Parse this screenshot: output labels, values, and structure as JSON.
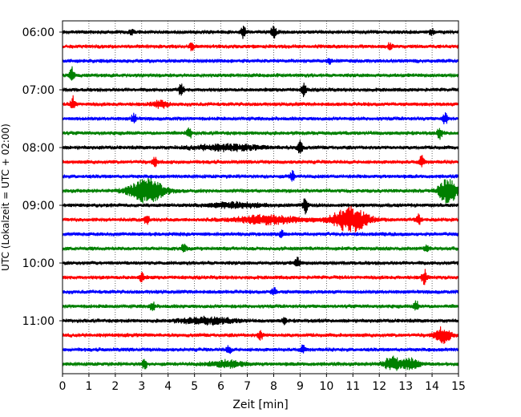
{
  "chart_data": {
    "type": "line",
    "subtype": "helicorder",
    "xlabel": "Zeit  [min]",
    "ylabel": "UTC (Lokalzeit = UTC + 02:00)",
    "xlim": [
      0,
      15
    ],
    "x_ticks": [
      "0",
      "1",
      "2",
      "3",
      "4",
      "5",
      "6",
      "7",
      "8",
      "9",
      "10",
      "11",
      "12",
      "13",
      "14",
      "15"
    ],
    "y_ticks": [
      {
        "label": "06:00",
        "trace_index": 0
      },
      {
        "label": "07:00",
        "trace_index": 4
      },
      {
        "label": "08:00",
        "trace_index": 8
      },
      {
        "label": "09:00",
        "trace_index": 12
      },
      {
        "label": "10:00",
        "trace_index": 16
      },
      {
        "label": "11:00",
        "trace_index": 20
      }
    ],
    "trace_colors": [
      "#000000",
      "#ff0000",
      "#0000ff",
      "#008000"
    ],
    "trace_count": 24,
    "minutes_per_trace": 15,
    "vertical_grid": "dotted",
    "events": [
      {
        "trace": 0,
        "minute": 6.85,
        "amplitude": 0.5
      },
      {
        "trace": 0,
        "minute": 8.0,
        "amplitude": 0.6
      },
      {
        "trace": 0,
        "minute": 2.6,
        "amplitude": 0.2
      },
      {
        "trace": 0,
        "minute": 14.0,
        "amplitude": 0.25
      },
      {
        "trace": 1,
        "minute": 4.9,
        "amplitude": 0.25
      },
      {
        "trace": 1,
        "minute": 12.4,
        "amplitude": 0.25
      },
      {
        "trace": 2,
        "minute": 10.1,
        "amplitude": 0.2
      },
      {
        "trace": 3,
        "minute": 0.35,
        "amplitude": 0.6
      },
      {
        "trace": 4,
        "minute": 4.5,
        "amplitude": 0.5
      },
      {
        "trace": 4,
        "minute": 9.15,
        "amplitude": 0.45
      },
      {
        "trace": 5,
        "minute": 0.4,
        "amplitude": 0.6
      },
      {
        "trace": 5,
        "minute": 3.7,
        "amplitude": 0.25,
        "duration": 0.4
      },
      {
        "trace": 6,
        "minute": 2.7,
        "amplitude": 0.4
      },
      {
        "trace": 6,
        "minute": 14.5,
        "amplitude": 0.45
      },
      {
        "trace": 7,
        "minute": 4.8,
        "amplitude": 0.45
      },
      {
        "trace": 7,
        "minute": 14.3,
        "amplitude": 0.45
      },
      {
        "trace": 8,
        "minute": 9.0,
        "amplitude": 0.6
      },
      {
        "trace": 8,
        "minute": 6.2,
        "amplitude": 0.2,
        "duration": 2.0
      },
      {
        "trace": 9,
        "minute": 3.5,
        "amplitude": 0.35
      },
      {
        "trace": 9,
        "minute": 13.6,
        "amplitude": 0.5
      },
      {
        "trace": 10,
        "minute": 8.7,
        "amplitude": 0.4
      },
      {
        "trace": 11,
        "minute": 3.2,
        "amplitude": 0.9,
        "duration": 1.0
      },
      {
        "trace": 11,
        "minute": 14.6,
        "amplitude": 0.95,
        "duration": 0.5
      },
      {
        "trace": 12,
        "minute": 9.2,
        "amplitude": 0.6
      },
      {
        "trace": 12,
        "minute": 6.5,
        "amplitude": 0.2,
        "duration": 1.5
      },
      {
        "trace": 13,
        "minute": 10.9,
        "amplitude": 0.95,
        "duration": 1.0
      },
      {
        "trace": 13,
        "minute": 7.8,
        "amplitude": 0.3,
        "duration": 2.0
      },
      {
        "trace": 13,
        "minute": 3.2,
        "amplitude": 0.4
      },
      {
        "trace": 13,
        "minute": 13.5,
        "amplitude": 0.4
      },
      {
        "trace": 14,
        "minute": 8.3,
        "amplitude": 0.25
      },
      {
        "trace": 15,
        "minute": 4.6,
        "amplitude": 0.35
      },
      {
        "trace": 15,
        "minute": 13.8,
        "amplitude": 0.35
      },
      {
        "trace": 16,
        "minute": 8.9,
        "amplitude": 0.4
      },
      {
        "trace": 17,
        "minute": 3.0,
        "amplitude": 0.35
      },
      {
        "trace": 17,
        "minute": 13.7,
        "amplitude": 0.6
      },
      {
        "trace": 18,
        "minute": 8.0,
        "amplitude": 0.3
      },
      {
        "trace": 19,
        "minute": 3.4,
        "amplitude": 0.35
      },
      {
        "trace": 19,
        "minute": 13.4,
        "amplitude": 0.4
      },
      {
        "trace": 20,
        "minute": 5.5,
        "amplitude": 0.25,
        "duration": 1.5
      },
      {
        "trace": 20,
        "minute": 8.4,
        "amplitude": 0.3
      },
      {
        "trace": 21,
        "minute": 7.5,
        "amplitude": 0.35
      },
      {
        "trace": 21,
        "minute": 14.4,
        "amplitude": 0.6,
        "duration": 0.4
      },
      {
        "trace": 22,
        "minute": 6.3,
        "amplitude": 0.3
      },
      {
        "trace": 22,
        "minute": 9.1,
        "amplitude": 0.35
      },
      {
        "trace": 23,
        "minute": 3.1,
        "amplitude": 0.4
      },
      {
        "trace": 23,
        "minute": 12.5,
        "amplitude": 0.5,
        "duration": 0.5
      },
      {
        "trace": 23,
        "minute": 13.2,
        "amplitude": 0.4,
        "duration": 0.4
      },
      {
        "trace": 23,
        "minute": 6.2,
        "amplitude": 0.25,
        "duration": 1.0
      }
    ]
  }
}
